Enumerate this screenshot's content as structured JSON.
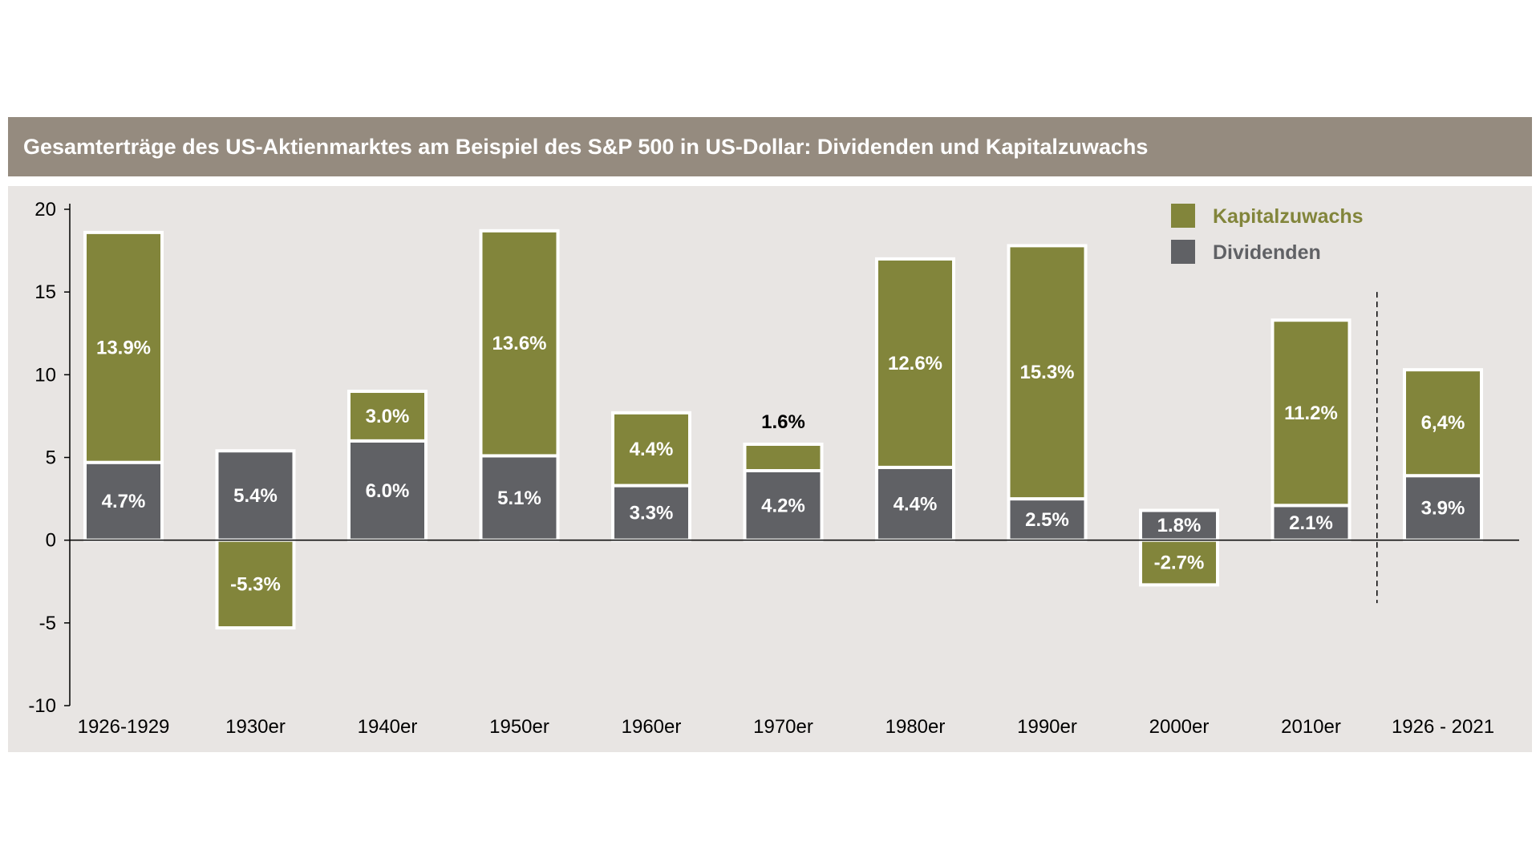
{
  "chart_data": {
    "type": "bar",
    "stacked": true,
    "title": "Gesamterträge des US-Aktienmarktes am Beispiel des S&P 500 in US-Dollar: Dividenden und Kapitalzuwachs",
    "categories": [
      "1926-1929",
      "1930er",
      "1940er",
      "1950er",
      "1960er",
      "1970er",
      "1980er",
      "1990er",
      "2000er",
      "2010er",
      "1926 - 2021"
    ],
    "series": [
      {
        "name": "Dividenden",
        "color": "#606165",
        "values": [
          4.7,
          5.4,
          6.0,
          5.1,
          3.3,
          4.2,
          4.4,
          2.5,
          1.8,
          2.1,
          3.9
        ],
        "labels": [
          "4.7%",
          "5.4%",
          "6.0%",
          "5.1%",
          "3.3%",
          "4.2%",
          "4.4%",
          "2.5%",
          "1.8%",
          "2.1%",
          "3.9%"
        ]
      },
      {
        "name": "Kapitalzuwachs",
        "color": "#82853b",
        "values": [
          13.9,
          -5.3,
          3.0,
          13.6,
          4.4,
          1.6,
          12.6,
          15.3,
          -2.7,
          11.2,
          6.4
        ],
        "labels": [
          "13.9%",
          "-5.3%",
          "3.0%",
          "13.6%",
          "4.4%",
          "1.6%",
          "12.6%",
          "15.3%",
          "-2.7%",
          "11.2%",
          "6,4%"
        ]
      }
    ],
    "ylim": [
      -10,
      20
    ],
    "yticks": [
      -10,
      -5,
      0,
      5,
      10,
      15,
      20
    ],
    "xlabel": "",
    "ylabel": "",
    "grid": false,
    "legend": "top-right",
    "separator_before_last": true
  }
}
